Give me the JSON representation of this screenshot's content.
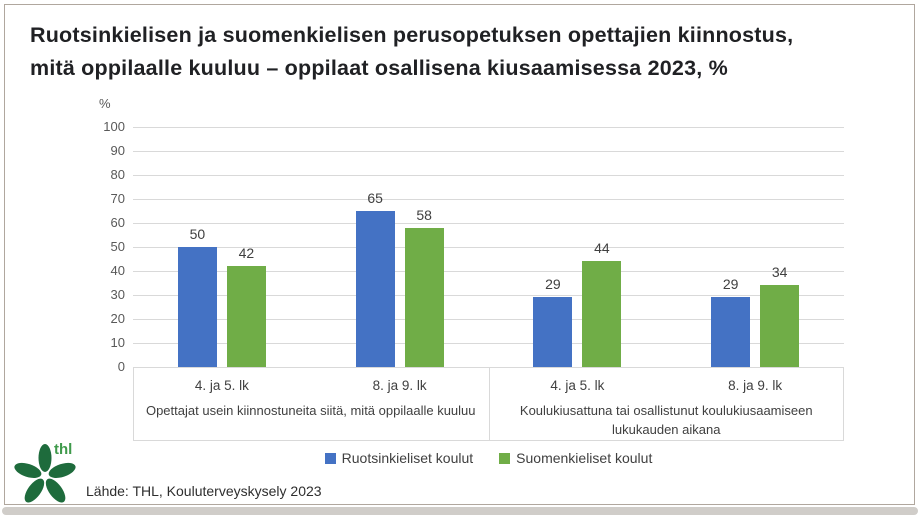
{
  "header": {
    "title_line1": "Ruotsinkielisen ja suomenkielisen perusopetuksen opettajien kiinnostus,",
    "title_line2": "mitä oppilaalle kuuluu – oppilaat osallisena kiusaamisessa 2023, %"
  },
  "chart_data": {
    "type": "bar",
    "title": "Ruotsinkielisen ja suomenkielisen perusopetuksen opettajien kiinnostus, mitä oppilaalle kuuluu – oppilaat osallisena kiusaamisessa 2023, %",
    "unit_label": "%",
    "ylim": [
      0,
      100
    ],
    "ytick_step": 10,
    "grid": true,
    "legend_position": "bottom",
    "panels": [
      {
        "label": "Opettajat usein kiinnostuneita siitä, mitä oppilaalle kuuluu",
        "categories": [
          "4. ja 5. lk",
          "8. ja 9. lk"
        ]
      },
      {
        "label": "Koulukiusattuna tai osallistunut koulukiusaamiseen lukukauden aikana",
        "categories": [
          "4. ja 5. lk",
          "8. ja 9. lk"
        ]
      }
    ],
    "categories": [
      "4. ja 5. lk",
      "8. ja 9. lk",
      "4. ja 5. lk",
      "8. ja 9. lk"
    ],
    "series": [
      {
        "name": "Ruotsinkieliset koulut",
        "color": "#4472C4",
        "values": [
          50,
          65,
          29,
          29
        ]
      },
      {
        "name": "Suomenkieliset koulut",
        "color": "#70AD47",
        "values": [
          42,
          58,
          44,
          34
        ]
      }
    ]
  },
  "footer": {
    "source": "Lähde: THL, Kouluterveyskysely 2023",
    "logo_text": "thl"
  },
  "colors": {
    "series_blue": "#4472C4",
    "series_green": "#70AD47",
    "gridline": "#D9D9D9",
    "logo_green": "#1E6B3C",
    "logo_text_green": "#3F9A4B"
  }
}
